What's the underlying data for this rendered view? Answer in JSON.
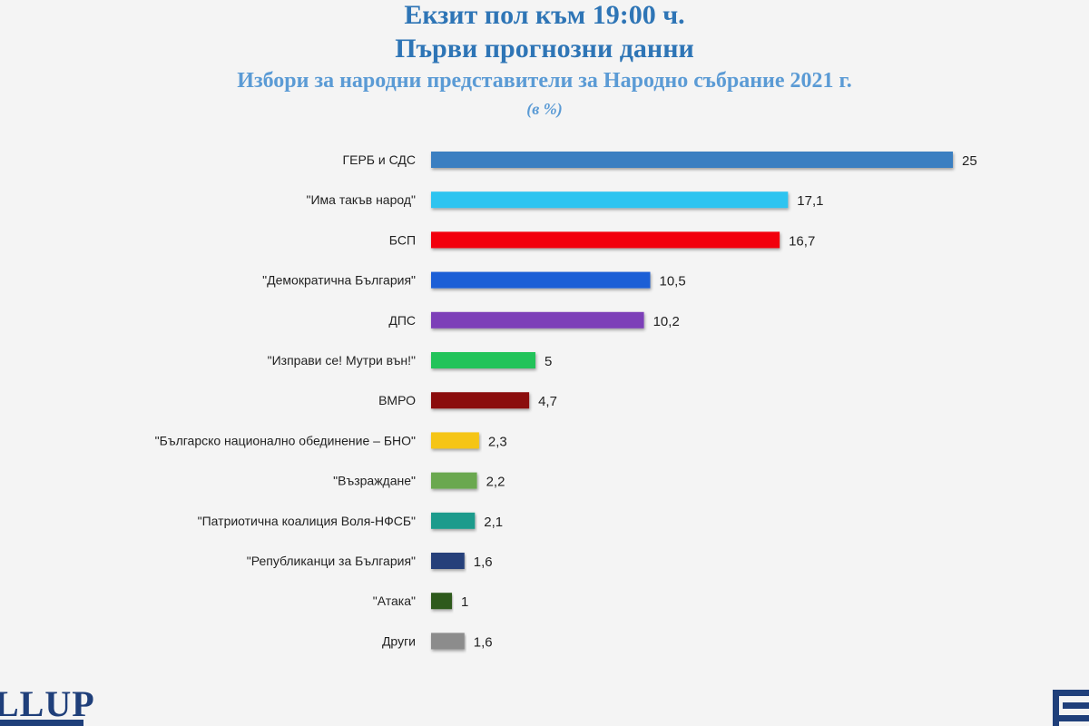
{
  "header": {
    "title_line1": "Екзит пол към 19:00 ч.",
    "title_line2": "Първи прогнозни данни",
    "subtitle": "Избори за народни представители за Народно събрание 2021 г.",
    "unit": "(в %)"
  },
  "logos": {
    "left_text": "LLUP"
  },
  "chart_data": {
    "type": "bar",
    "orientation": "horizontal",
    "title": "Избори за народни представители за Народно събрание 2021 г.",
    "xlabel": "",
    "ylabel": "",
    "unit": "(в %)",
    "xlim": [
      0,
      25
    ],
    "grid": false,
    "legend": "none",
    "categories": [
      "ГЕРБ и СДС",
      "\"Има такъв народ\"",
      "БСП",
      "\"Демократична България\"",
      "ДПС",
      "\"Изправи се! Мутри вън!\"",
      "ВМРО",
      "\"Българско национално обединение – БНО\"",
      "\"Възраждане\"",
      "\"Патриотична коалиция Воля-НФСБ\"",
      "\"Републиканци за България\"",
      "\"Атака\"",
      "Други"
    ],
    "values": [
      25,
      17.1,
      16.7,
      10.5,
      10.2,
      5,
      4.7,
      2.3,
      2.2,
      2.1,
      1.6,
      1,
      1.6
    ],
    "value_labels": [
      "25",
      "17,1",
      "16,7",
      "10,5",
      "10,2",
      "5",
      "4,7",
      "2,3",
      "2,2",
      "2,1",
      "1,6",
      "1",
      "1,6"
    ],
    "colors": [
      "#3a7fc1",
      "#2ec4f0",
      "#f2020c",
      "#1f5fd6",
      "#7d3fb8",
      "#21c35a",
      "#8b1010",
      "#f5c518",
      "#6aa84f",
      "#1a9b8c",
      "#27407a",
      "#2f5a1f",
      "#8c8c8c"
    ]
  }
}
